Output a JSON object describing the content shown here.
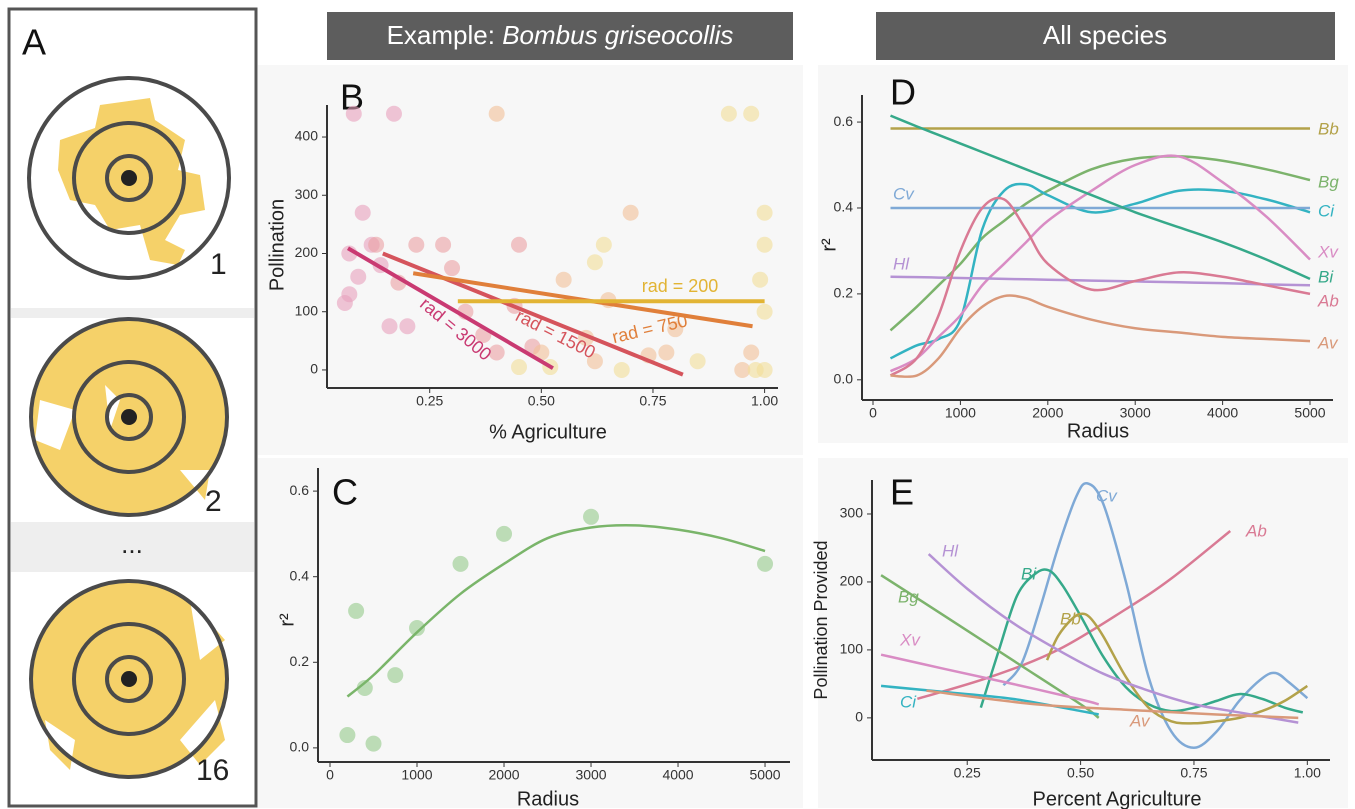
{
  "panel_a": {
    "letter": "A",
    "labels": [
      "1",
      "2",
      "...",
      "16"
    ]
  },
  "headers": {
    "example_prefix": "Example:",
    "example_species": "Bombus griseocollis",
    "all": "All species"
  },
  "chart_data": [
    {
      "type": "scatter",
      "panel": "B",
      "x_label": "% Agriculture",
      "y_label": "Pollination",
      "xlim": [
        0.02,
        1.03
      ],
      "ylim": [
        -31,
        455
      ],
      "xticks": [
        {
          "value": 0.25,
          "label": "0.25"
        },
        {
          "value": 0.5,
          "label": "0.50"
        },
        {
          "value": 0.75,
          "label": "0.75"
        },
        {
          "value": 1,
          "label": "1.00"
        }
      ],
      "yticks": [
        0,
        100,
        200,
        300,
        400
      ],
      "series": [
        {
          "name": "rad = 3000",
          "color": "#c93a72",
          "x": [
            0.067,
            0.526
          ],
          "values": [
            209,
            3
          ],
          "points": {
            "color": "#e8a0bc",
            "x": [
              0.06,
              0.07,
              0.08,
              0.09,
              0.1,
              0.12,
              0.14,
              0.16,
              0.17,
              0.2,
              0.07
            ],
            "y": [
              115,
              130,
              440,
              160,
              270,
              215,
              180,
              75,
              440,
              75,
              200
            ]
          }
        },
        {
          "name": "rad = 1500",
          "color": "#d5545c",
          "x": [
            0.145,
            0.817
          ],
          "values": [
            200,
            -8
          ],
          "points": {
            "color": "#eba0a4",
            "x": [
              0.13,
              0.18,
              0.22,
              0.28,
              0.3,
              0.33,
              0.37,
              0.4,
              0.44,
              0.45,
              0.48
            ],
            "y": [
              215,
              150,
              215,
              215,
              175,
              100,
              60,
              30,
              110,
              215,
              40
            ]
          }
        },
        {
          "name": "rad = 750",
          "color": "#e07f3a",
          "x": [
            0.213,
            0.973
          ],
          "values": [
            166,
            75
          ],
          "points": {
            "color": "#f2bf98",
            "x": [
              0.4,
              0.5,
              0.55,
              0.6,
              0.62,
              0.65,
              0.7,
              0.74,
              0.78,
              0.8,
              0.95,
              0.97
            ],
            "y": [
              440,
              30,
              155,
              55,
              15,
              120,
              270,
              25,
              30,
              70,
              0,
              30
            ]
          }
        },
        {
          "name": "rad = 200",
          "color": "#e2b434",
          "x": [
            0.313,
            1.0
          ],
          "values": [
            118,
            118
          ],
          "points": {
            "color": "#f2de98",
            "x": [
              0.45,
              0.52,
              0.62,
              0.64,
              0.68,
              0.85,
              0.92,
              0.97,
              0.98,
              0.99,
              1.0,
              1.0,
              1.0,
              1.0
            ],
            "y": [
              5,
              5,
              185,
              215,
              0,
              15,
              440,
              440,
              0,
              155,
              270,
              215,
              100,
              0
            ]
          }
        }
      ]
    },
    {
      "type": "scatter",
      "panel": "C",
      "x_label": "Radius",
      "y_label": "r²",
      "xlim": [
        -138,
        5287
      ],
      "ylim": [
        -0.033,
        0.654
      ],
      "xticks": [
        0,
        1000,
        2000,
        3000,
        4000,
        5000
      ],
      "yticks": [
        {
          "value": 0,
          "label": "0.0"
        },
        {
          "value": 0.2,
          "label": "0.2"
        },
        {
          "value": 0.4,
          "label": "0.4"
        },
        {
          "value": 0.6,
          "label": "0.6"
        }
      ],
      "series": [
        {
          "color": "#7ab56a",
          "x": [
            200,
            500,
            1000,
            1500,
            2000,
            2500,
            3000,
            3500,
            4000,
            4500,
            5000
          ],
          "values": [
            0.12,
            0.17,
            0.27,
            0.36,
            0.43,
            0.49,
            0.515,
            0.52,
            0.51,
            0.49,
            0.46
          ],
          "points": {
            "color": "#94c98a",
            "x": [
              200,
              300,
              400,
              500,
              750,
              1000,
              1500,
              2000,
              3000,
              5000
            ],
            "y": [
              0.03,
              0.32,
              0.14,
              0.01,
              0.17,
              0.28,
              0.43,
              0.5,
              0.54,
              0.43
            ]
          }
        }
      ]
    },
    {
      "type": "line",
      "panel": "D",
      "x_label": "Radius",
      "y_label": "r²",
      "xlim": [
        -126,
        5263
      ],
      "ylim": [
        -0.047,
        0.663
      ],
      "xticks": [
        0,
        1000,
        2000,
        3000,
        4000,
        5000
      ],
      "yticks": [
        {
          "value": 0,
          "label": "0.0"
        },
        {
          "value": 0.2,
          "label": "0.2"
        },
        {
          "value": 0.4,
          "label": "0.4"
        },
        {
          "value": 0.6,
          "label": "0.6"
        }
      ],
      "x": [
        200,
        500,
        750,
        1000,
        1250,
        1500,
        1750,
        2000,
        2500,
        3000,
        3500,
        4000,
        4500,
        5000
      ],
      "series": [
        {
          "name": "Bb",
          "color": "#b3a24a",
          "values": [
            0.585,
            0.585,
            0.585,
            0.585,
            0.585,
            0.585,
            0.585,
            0.585,
            0.585,
            0.585,
            0.585,
            0.585,
            0.585,
            0.585
          ]
        },
        {
          "name": "Bg",
          "color": "#7cb36c",
          "values": [
            0.115,
            0.17,
            0.22,
            0.27,
            0.33,
            0.37,
            0.41,
            0.44,
            0.49,
            0.515,
            0.52,
            0.51,
            0.49,
            0.465
          ]
        },
        {
          "name": "Ci",
          "color": "#33b3c2",
          "values": [
            0.05,
            0.08,
            0.095,
            0.14,
            0.35,
            0.44,
            0.455,
            0.43,
            0.39,
            0.41,
            0.44,
            0.44,
            0.42,
            0.39
          ]
        },
        {
          "name": "Cv",
          "color": "#7fa9d6",
          "values": [
            0.4,
            0.4,
            0.4,
            0.4,
            0.4,
            0.4,
            0.4,
            0.4,
            0.4,
            0.4,
            0.4,
            0.4,
            0.4,
            0.4
          ]
        },
        {
          "name": "Xv",
          "color": "#d98cc4",
          "values": [
            0.02,
            0.05,
            0.1,
            0.15,
            0.22,
            0.27,
            0.32,
            0.37,
            0.44,
            0.5,
            0.52,
            0.46,
            0.38,
            0.28
          ]
        },
        {
          "name": "Bi",
          "color": "#36a98a",
          "values": [
            0.615,
            0.59,
            0.57,
            0.55,
            0.53,
            0.51,
            0.49,
            0.47,
            0.43,
            0.39,
            0.355,
            0.32,
            0.28,
            0.235
          ]
        },
        {
          "name": "Hl",
          "color": "#b592d4",
          "values": [
            0.24,
            0.239,
            0.238,
            0.237,
            0.236,
            0.235,
            0.234,
            0.233,
            0.231,
            0.229,
            0.227,
            0.225,
            0.222,
            0.22
          ]
        },
        {
          "name": "Ab",
          "color": "#d97a94",
          "values": [
            0.01,
            0.05,
            0.15,
            0.3,
            0.4,
            0.42,
            0.35,
            0.27,
            0.21,
            0.23,
            0.25,
            0.24,
            0.22,
            0.2
          ]
        },
        {
          "name": "Av",
          "color": "#d9997a",
          "values": [
            0.01,
            0.01,
            0.05,
            0.12,
            0.17,
            0.195,
            0.19,
            0.17,
            0.14,
            0.12,
            0.11,
            0.1,
            0.095,
            0.09
          ]
        }
      ]
    },
    {
      "type": "line",
      "panel": "E",
      "x_label": "Percent Agriculture",
      "y_label": "Pollination Provided",
      "xlim": [
        0.04,
        1.05
      ],
      "ylim": [
        -62,
        350
      ],
      "xticks": [
        {
          "value": 0.25,
          "label": "0.25"
        },
        {
          "value": 0.5,
          "label": "0.50"
        },
        {
          "value": 0.75,
          "label": "0.75"
        },
        {
          "value": 1,
          "label": "1.00"
        }
      ],
      "yticks": [
        0,
        100,
        200,
        300
      ],
      "series": [
        {
          "name": "Ab",
          "color": "#d97a94",
          "x": [
            0.14,
            0.3,
            0.45,
            0.6,
            0.7,
            0.83
          ],
          "values": [
            28,
            60,
            100,
            160,
            205,
            275
          ]
        },
        {
          "name": "Cv",
          "color": "#7fa9d6",
          "x": [
            0.33,
            0.37,
            0.41,
            0.45,
            0.49,
            0.515,
            0.55,
            0.6,
            0.65,
            0.7,
            0.75,
            0.8,
            0.85,
            0.9,
            0.93,
            0.96,
            1.0
          ],
          "values": [
            48,
            80,
            160,
            250,
            325,
            345,
            315,
            200,
            60,
            -20,
            -44,
            -20,
            25,
            58,
            66,
            52,
            29
          ]
        },
        {
          "name": "Bi",
          "color": "#36a98a",
          "x": [
            0.28,
            0.32,
            0.36,
            0.4,
            0.43,
            0.46,
            0.5,
            0.55,
            0.6,
            0.65,
            0.7,
            0.75,
            0.8,
            0.85,
            0.9,
            0.95,
            0.99
          ],
          "values": [
            15,
            100,
            180,
            212,
            217,
            195,
            150,
            90,
            45,
            20,
            10,
            15,
            25,
            35,
            28,
            15,
            8
          ]
        },
        {
          "name": "Bb",
          "color": "#b3a24a",
          "x": [
            0.426,
            0.45,
            0.48,
            0.5,
            0.52,
            0.55,
            0.6,
            0.65,
            0.7,
            0.75,
            0.8,
            0.85,
            0.9,
            0.95,
            1.0
          ],
          "values": [
            85,
            120,
            145,
            153,
            148,
            120,
            60,
            15,
            -5,
            -8,
            -5,
            0,
            10,
            25,
            47
          ]
        },
        {
          "name": "Hl",
          "color": "#b592d4",
          "x": [
            0.165,
            0.25,
            0.35,
            0.45,
            0.55,
            0.65,
            0.75,
            0.85,
            0.98
          ],
          "values": [
            241,
            190,
            140,
            100,
            65,
            40,
            20,
            8,
            -7
          ]
        },
        {
          "name": "Bg",
          "color": "#7cb36c",
          "x": [
            0.06,
            0.2,
            0.35,
            0.5,
            0.54
          ],
          "values": [
            210,
            150,
            85,
            20,
            0
          ]
        },
        {
          "name": "Xv",
          "color": "#d98cc4",
          "x": [
            0.06,
            0.2,
            0.35,
            0.5,
            0.54
          ],
          "values": [
            93,
            72,
            50,
            27,
            20
          ]
        },
        {
          "name": "Ci",
          "color": "#33b3c2",
          "x": [
            0.06,
            0.2,
            0.35,
            0.5,
            0.54
          ],
          "values": [
            47,
            38,
            28,
            10,
            5
          ]
        },
        {
          "name": "Av",
          "color": "#d9997a",
          "x": [
            0.16,
            0.4,
            0.6,
            0.8,
            0.98
          ],
          "values": [
            40,
            20,
            12,
            5,
            0
          ]
        }
      ]
    }
  ]
}
